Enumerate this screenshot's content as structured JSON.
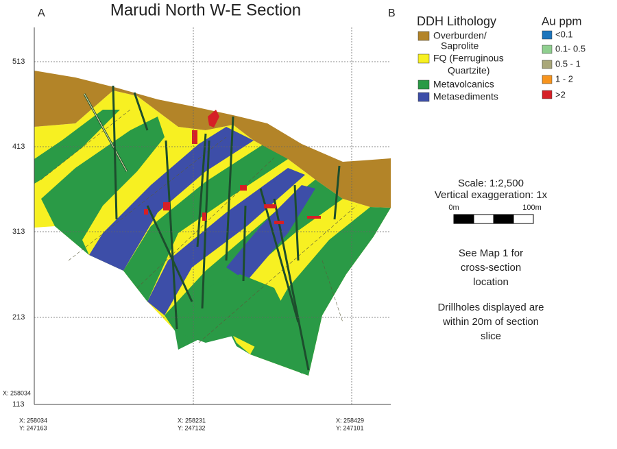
{
  "title": "Marudi North W-E Section",
  "section_ends": {
    "start": "A",
    "end": "B"
  },
  "axis": {
    "elevations": [
      513,
      413,
      313,
      213,
      113
    ],
    "side_label": "X: 258034",
    "coordinates": [
      {
        "x": "X: 258034",
        "y": "Y: 247163"
      },
      {
        "x": "X: 258231",
        "y": "Y: 247132"
      },
      {
        "x": "X: 258429",
        "y": "Y: 247101"
      }
    ]
  },
  "lithology_legend": {
    "title": "DDH Lithology",
    "items": [
      [
        "Overburden/",
        "Saprolite"
      ],
      [
        "FQ (Ferruginous",
        "Quartzite)"
      ],
      [
        "Metavolcanics"
      ],
      [
        "Metasediments"
      ]
    ]
  },
  "au_legend": {
    "title": "Au ppm",
    "items": [
      "<0.1",
      "0.1- 0.5",
      "0.5 - 1",
      "1 - 2",
      ">2"
    ]
  },
  "scale": {
    "text": "Scale: 1:2,500",
    "exaggeration": "Vertical exaggeration: 1x",
    "start": "0m",
    "end": "100m"
  },
  "notes": [
    [
      "See Map 1 for",
      "cross-section",
      "location"
    ],
    [
      "Drillholes displayed are",
      "within 20m of section",
      "slice"
    ]
  ]
}
